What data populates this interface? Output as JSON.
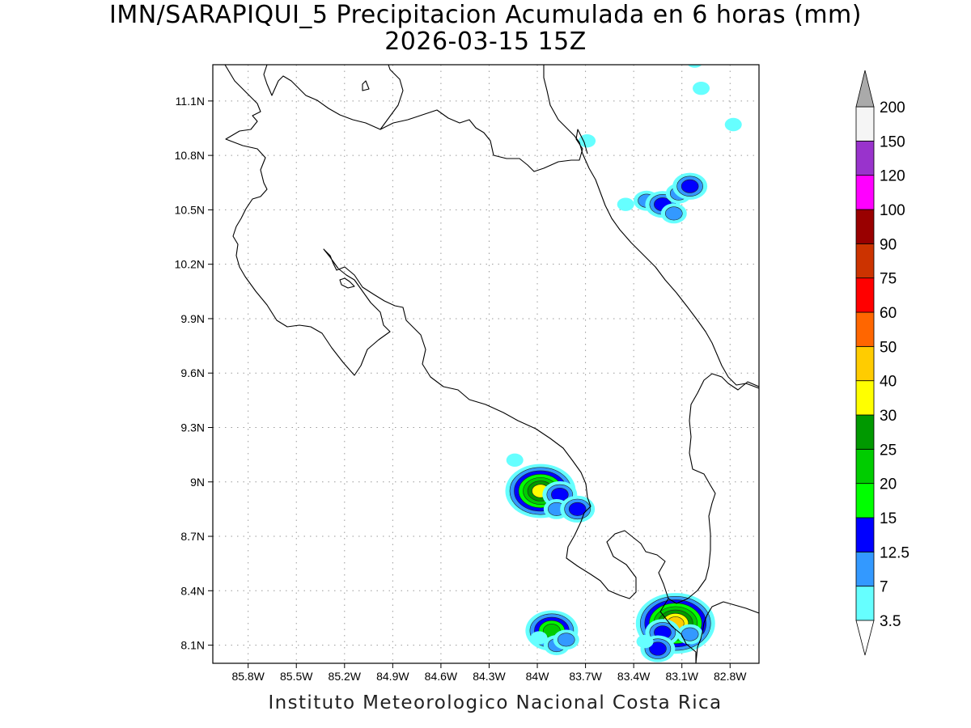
{
  "header": {
    "title": "IMN/SARAPIQUI_5 Precipitacion Acumulada en 6 horas (mm)",
    "subtitle": "2026-03-15 15Z"
  },
  "footer": {
    "credit": "Instituto Meteorologico Nacional Costa Rica"
  },
  "map": {
    "lon_range": [
      -86.02,
      -82.62
    ],
    "lat_range": [
      8.0,
      11.3
    ],
    "lon_ticks": [
      {
        "value": -85.8,
        "label": "85.8W"
      },
      {
        "value": -85.5,
        "label": "85.5W"
      },
      {
        "value": -85.2,
        "label": "85.2W"
      },
      {
        "value": -84.9,
        "label": "84.9W"
      },
      {
        "value": -84.6,
        "label": "84.6W"
      },
      {
        "value": -84.3,
        "label": "84.3W"
      },
      {
        "value": -84.0,
        "label": "84W"
      },
      {
        "value": -83.7,
        "label": "83.7W"
      },
      {
        "value": -83.4,
        "label": "83.4W"
      },
      {
        "value": -83.1,
        "label": "83.1W"
      },
      {
        "value": -82.8,
        "label": "82.8W"
      }
    ],
    "lat_ticks": [
      {
        "value": 11.1,
        "label": "11.1N"
      },
      {
        "value": 10.8,
        "label": "10.8N"
      },
      {
        "value": 10.5,
        "label": "10.5N"
      },
      {
        "value": 10.2,
        "label": "10.2N"
      },
      {
        "value": 9.9,
        "label": "9.9N"
      },
      {
        "value": 9.6,
        "label": "9.6N"
      },
      {
        "value": 9.3,
        "label": "9.3N"
      },
      {
        "value": 9.0,
        "label": "9N"
      },
      {
        "value": 8.7,
        "label": "8.7N"
      },
      {
        "value": 8.4,
        "label": "8.4N"
      },
      {
        "value": 8.1,
        "label": "8.1N"
      }
    ],
    "grid": true
  },
  "colorbar": {
    "levels": [
      {
        "label": "3.5",
        "color": "#66ffff"
      },
      {
        "label": "7",
        "color": "#3399ff"
      },
      {
        "label": "12.5",
        "color": "#0000ff"
      },
      {
        "label": "15",
        "color": "#00ff00"
      },
      {
        "label": "20",
        "color": "#00cc00"
      },
      {
        "label": "25",
        "color": "#009900"
      },
      {
        "label": "30",
        "color": "#ffff00"
      },
      {
        "label": "40",
        "color": "#ffcc00"
      },
      {
        "label": "50",
        "color": "#ff6600"
      },
      {
        "label": "60",
        "color": "#ff0000"
      },
      {
        "label": "75",
        "color": "#cc3300"
      },
      {
        "label": "90",
        "color": "#990000"
      },
      {
        "label": "100",
        "color": "#ff00ff"
      },
      {
        "label": "120",
        "color": "#9933cc"
      },
      {
        "label": "150",
        "color": "#f5f5f5"
      },
      {
        "label": "200",
        "color": "#aaaaaa"
      }
    ],
    "below_color": "#ffffff",
    "above_color": "#aaaaaa"
  },
  "precip_cells": [
    {
      "lon": -83.02,
      "lat": 11.32,
      "value": 3.5
    },
    {
      "lon": -82.98,
      "lat": 11.17,
      "value": 3.5
    },
    {
      "lon": -82.78,
      "lat": 10.97,
      "value": 3.5
    },
    {
      "lon": -83.69,
      "lat": 10.88,
      "value": 3.5
    },
    {
      "lon": -83.45,
      "lat": 10.53,
      "value": 3.5
    },
    {
      "lon": -83.32,
      "lat": 10.55,
      "value": 7
    },
    {
      "lon": -83.22,
      "lat": 10.53,
      "value": 12.5
    },
    {
      "lon": -83.12,
      "lat": 10.59,
      "value": 7
    },
    {
      "lon": -83.05,
      "lat": 10.63,
      "value": 12.5
    },
    {
      "lon": -83.15,
      "lat": 10.48,
      "value": 7
    },
    {
      "lon": -84.14,
      "lat": 9.12,
      "value": 3.5
    },
    {
      "lon": -83.98,
      "lat": 8.95,
      "value": 30
    },
    {
      "lon": -83.86,
      "lat": 8.93,
      "value": 12.5
    },
    {
      "lon": -83.88,
      "lat": 8.85,
      "value": 7
    },
    {
      "lon": -83.75,
      "lat": 8.85,
      "value": 12.5
    },
    {
      "lon": -83.91,
      "lat": 8.18,
      "value": 20
    },
    {
      "lon": -83.88,
      "lat": 8.1,
      "value": 7
    },
    {
      "lon": -83.82,
      "lat": 8.13,
      "value": 7
    },
    {
      "lon": -83.99,
      "lat": 8.14,
      "value": 3.5
    },
    {
      "lon": -83.14,
      "lat": 8.22,
      "value": 40
    },
    {
      "lon": -83.22,
      "lat": 8.17,
      "value": 12.5
    },
    {
      "lon": -83.25,
      "lat": 8.08,
      "value": 12.5
    },
    {
      "lon": -83.33,
      "lat": 8.12,
      "value": 3.5
    },
    {
      "lon": -83.05,
      "lat": 8.16,
      "value": 7
    }
  ]
}
